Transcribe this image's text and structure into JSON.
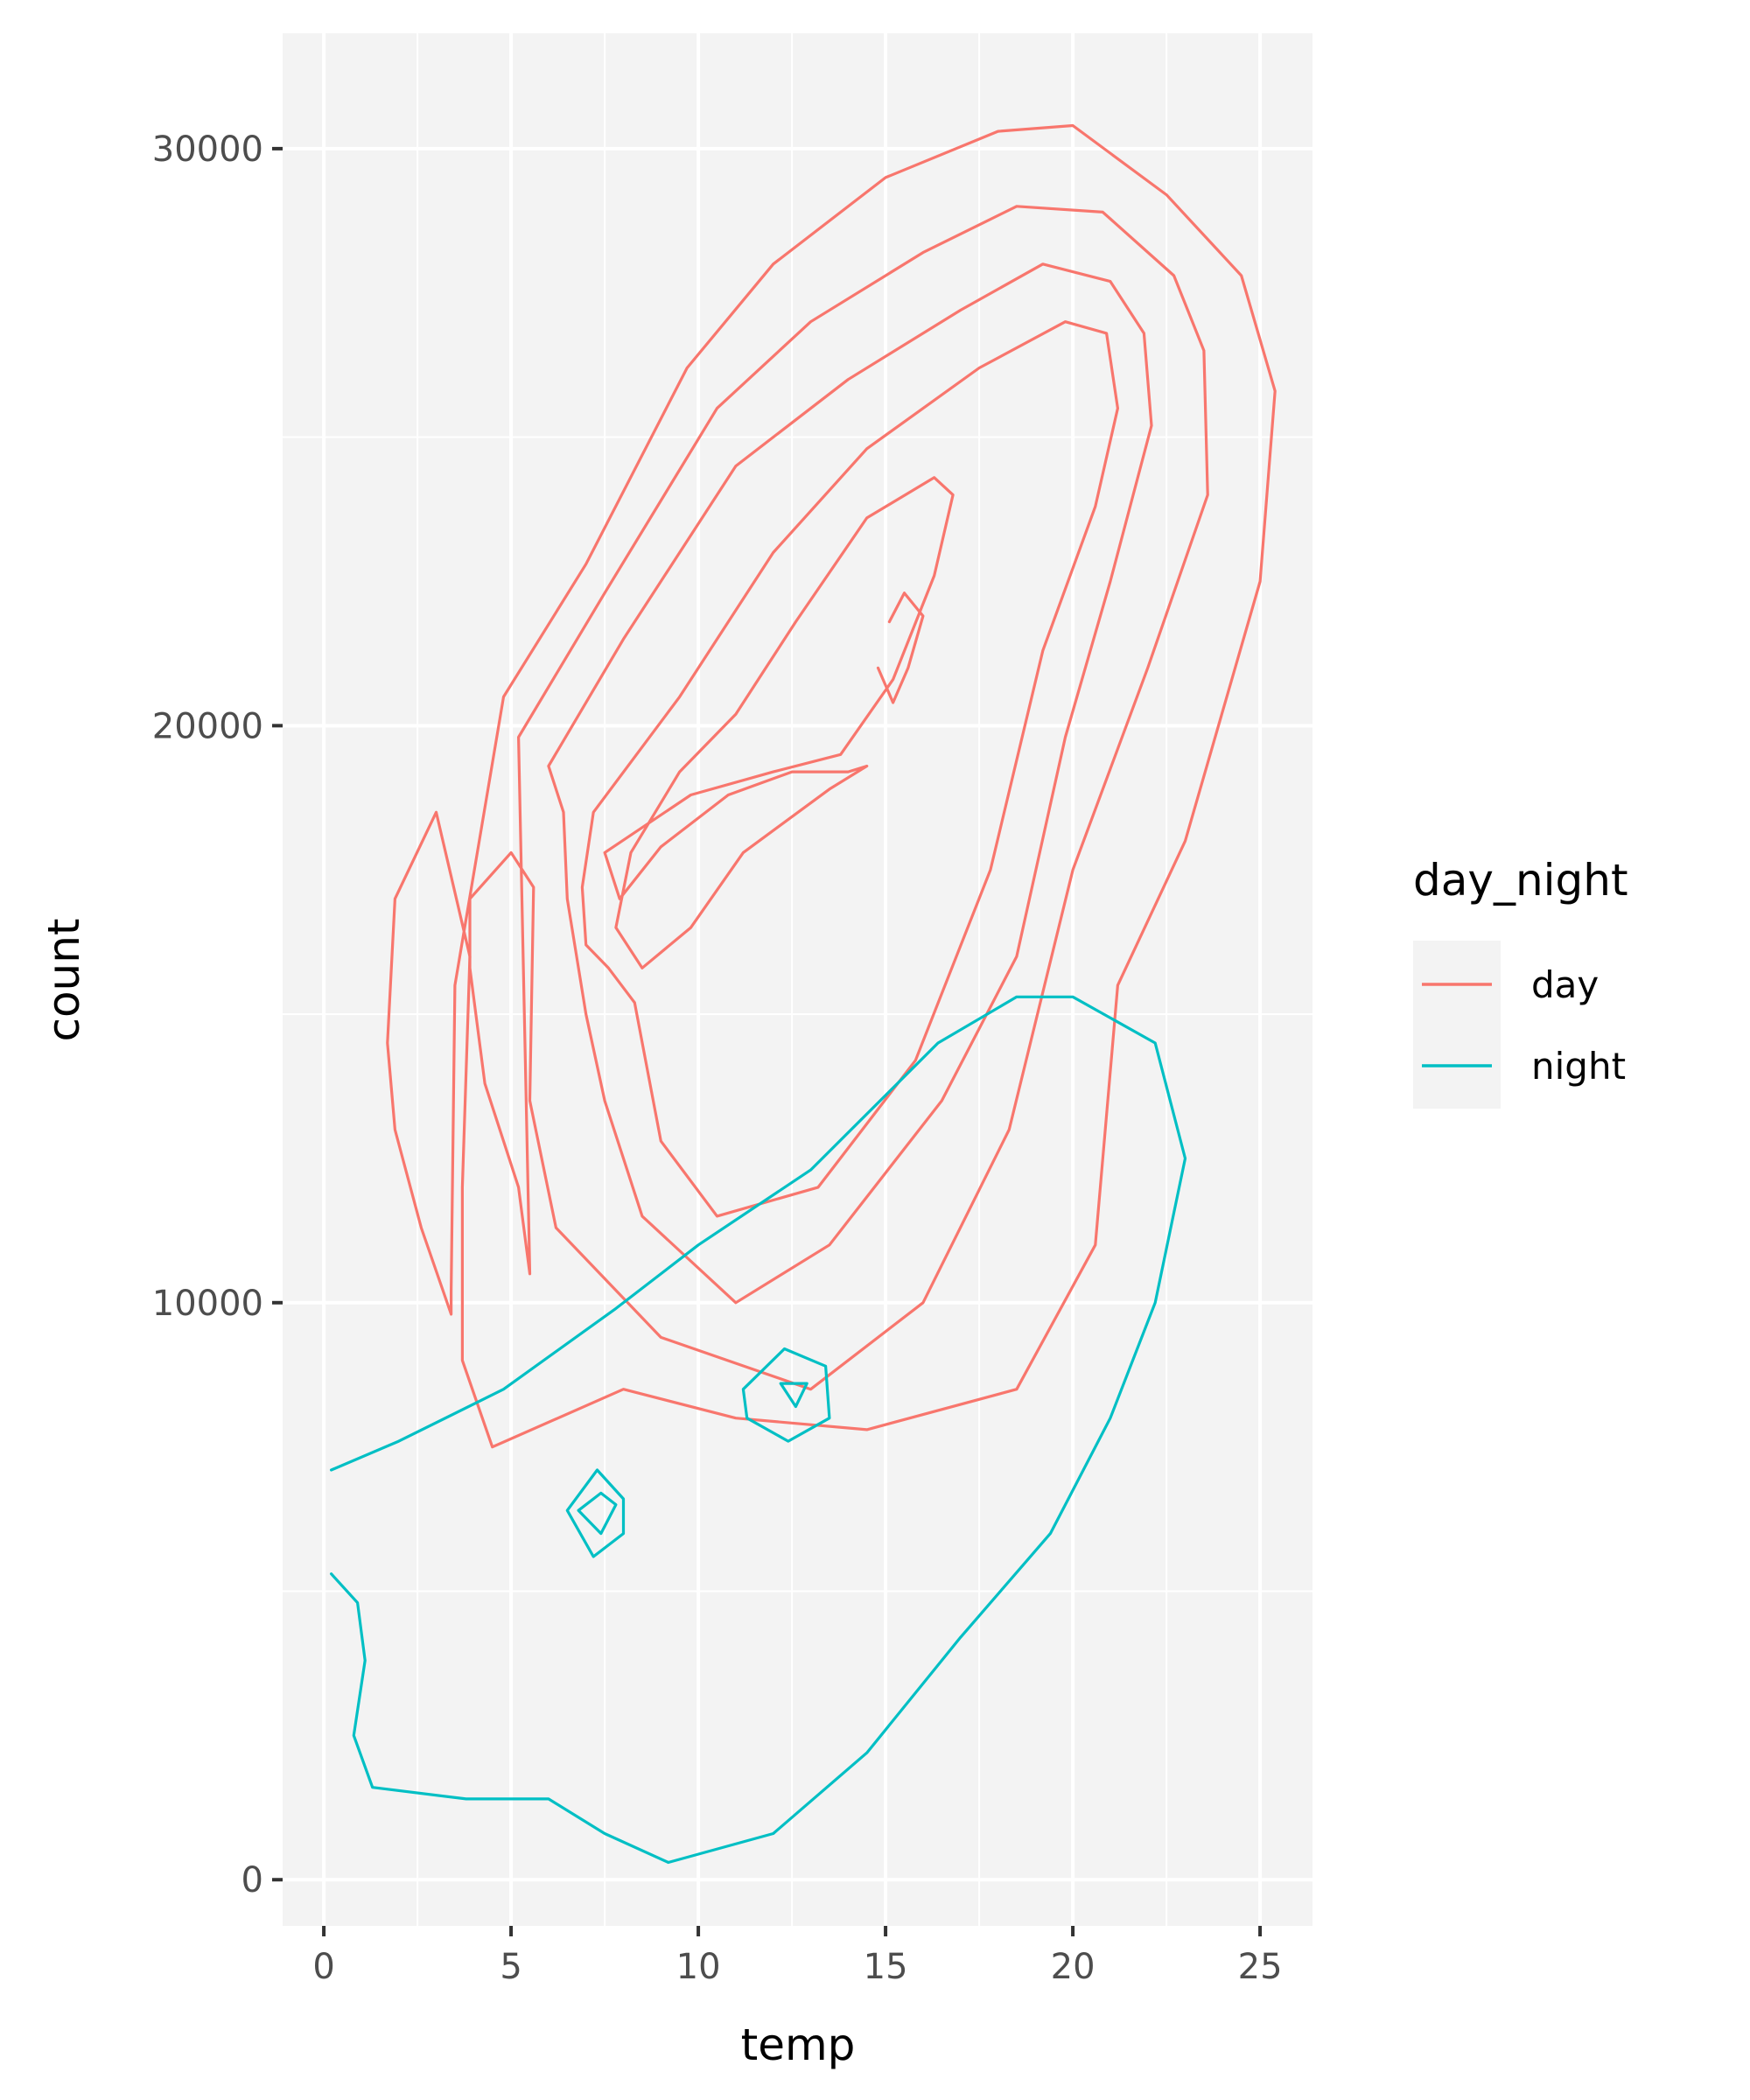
{
  "chart_data": {
    "type": "contour",
    "title": "",
    "xlabel": "temp",
    "ylabel": "count",
    "xlim": [
      -1.1,
      26.4
    ],
    "ylim": [
      -800,
      32000
    ],
    "x_ticks": [
      0,
      5,
      10,
      15,
      20,
      25
    ],
    "x_tick_labels": [
      "0",
      "5",
      "10",
      "15",
      "20",
      "25"
    ],
    "y_ticks": [
      0,
      10000,
      20000,
      30000
    ],
    "y_tick_labels": [
      "0",
      "10000",
      "20000",
      "30000"
    ],
    "grid": true,
    "legend": {
      "title": "day_night",
      "position": "right"
    },
    "series": [
      {
        "name": "day",
        "color": "#F8766D",
        "contours": [
          [
            [
              14.8,
              21.0
            ],
            [
              15.2,
              20.4
            ],
            [
              15.6,
              21.0
            ],
            [
              16.0,
              21.9
            ],
            [
              15.5,
              22.3
            ],
            [
              15.1,
              21.8
            ]
          ],
          [
            [
              4.8,
              20.5
            ],
            [
              7.0,
              22.8
            ],
            [
              9.7,
              26.2
            ],
            [
              12.0,
              28.0
            ],
            [
              15.0,
              29.5
            ],
            [
              18.0,
              30.3
            ],
            [
              20.0,
              30.4
            ],
            [
              22.5,
              29.2
            ],
            [
              24.5,
              27.8
            ],
            [
              25.4,
              25.8
            ],
            [
              25.0,
              22.5
            ],
            [
              23.0,
              18.0
            ],
            [
              21.2,
              15.5
            ],
            [
              20.6,
              11.0
            ],
            [
              18.5,
              8.5
            ],
            [
              14.5,
              7.8
            ],
            [
              11.0,
              8.0
            ],
            [
              8.0,
              8.5
            ],
            [
              4.5,
              7.5
            ],
            [
              3.7,
              9.0
            ],
            [
              3.7,
              12.0
            ],
            [
              3.9,
              16.0
            ],
            [
              3.0,
              18.5
            ],
            [
              1.9,
              17.0
            ],
            [
              1.7,
              14.5
            ],
            [
              1.9,
              13.0
            ],
            [
              2.6,
              11.3
            ],
            [
              3.4,
              9.8
            ],
            [
              3.4,
              10.2
            ],
            [
              3.5,
              15.5
            ],
            [
              4.8,
              20.5
            ]
          ],
          [
            [
              5.2,
              19.8
            ],
            [
              7.5,
              22.3
            ],
            [
              10.5,
              25.5
            ],
            [
              13.0,
              27.0
            ],
            [
              16.0,
              28.2
            ],
            [
              18.5,
              29.0
            ],
            [
              20.8,
              28.9
            ],
            [
              22.7,
              27.8
            ],
            [
              23.5,
              26.5
            ],
            [
              23.6,
              24.0
            ],
            [
              22.0,
              21.0
            ],
            [
              20.0,
              17.5
            ],
            [
              18.3,
              13.0
            ],
            [
              16.0,
              10.0
            ],
            [
              13.0,
              8.5
            ],
            [
              9.0,
              9.4
            ],
            [
              6.2,
              11.3
            ],
            [
              5.5,
              13.5
            ],
            [
              5.6,
              17.2
            ],
            [
              5.0,
              17.8
            ],
            [
              3.9,
              17.0
            ],
            [
              3.9,
              15.8
            ],
            [
              4.3,
              13.8
            ],
            [
              5.2,
              12.0
            ],
            [
              5.5,
              10.5
            ],
            [
              5.2,
              19.8
            ]
          ],
          [
            [
              6.0,
              19.3
            ],
            [
              8.0,
              21.5
            ],
            [
              11.0,
              24.5
            ],
            [
              14.0,
              26.0
            ],
            [
              17.0,
              27.2
            ],
            [
              19.2,
              28.0
            ],
            [
              21.0,
              27.7
            ],
            [
              21.9,
              26.8
            ],
            [
              22.1,
              25.2
            ],
            [
              21.0,
              22.5
            ],
            [
              19.8,
              19.8
            ],
            [
              18.5,
              16.0
            ],
            [
              16.5,
              13.5
            ],
            [
              13.5,
              11.0
            ],
            [
              11.0,
              10.0
            ],
            [
              8.5,
              11.5
            ],
            [
              7.5,
              13.5
            ],
            [
              7.0,
              15.0
            ],
            [
              6.5,
              17.0
            ],
            [
              6.4,
              18.5
            ],
            [
              6.0,
              19.3
            ]
          ],
          [
            [
              7.2,
              18.5
            ],
            [
              9.5,
              20.5
            ],
            [
              12.0,
              23.0
            ],
            [
              14.5,
              24.8
            ],
            [
              17.5,
              26.2
            ],
            [
              19.8,
              27.0
            ],
            [
              20.9,
              26.8
            ],
            [
              21.2,
              25.5
            ],
            [
              20.6,
              23.8
            ],
            [
              19.2,
              21.3
            ],
            [
              17.8,
              17.5
            ],
            [
              15.8,
              14.2
            ],
            [
              13.2,
              12.0
            ],
            [
              10.5,
              11.5
            ],
            [
              9.0,
              12.8
            ],
            [
              8.3,
              15.2
            ],
            [
              7.6,
              15.8
            ],
            [
              7.0,
              16.2
            ],
            [
              6.9,
              17.2
            ],
            [
              7.2,
              18.5
            ]
          ],
          [
            [
              7.5,
              17.8
            ],
            [
              9.8,
              18.8
            ],
            [
              12.0,
              19.2
            ],
            [
              13.8,
              19.5
            ],
            [
              15.2,
              20.8
            ],
            [
              16.3,
              22.6
            ],
            [
              16.8,
              24.0
            ],
            [
              16.3,
              24.3
            ],
            [
              14.5,
              23.6
            ],
            [
              12.6,
              21.8
            ],
            [
              11.0,
              20.2
            ],
            [
              9.5,
              19.2
            ],
            [
              8.2,
              17.8
            ],
            [
              7.8,
              16.5
            ],
            [
              8.5,
              15.8
            ],
            [
              9.8,
              16.5
            ],
            [
              11.2,
              17.8
            ],
            [
              13.5,
              18.9
            ],
            [
              14.5,
              19.3
            ],
            [
              14.0,
              19.2
            ],
            [
              12.5,
              19.2
            ],
            [
              10.8,
              18.8
            ],
            [
              9.0,
              17.9
            ],
            [
              7.9,
              17.0
            ],
            [
              7.5,
              17.8
            ]
          ]
        ]
      },
      {
        "name": "night",
        "color": "#00BFC4",
        "contours": [
          [
            [
              12.2,
              8.6
            ],
            [
              12.9,
              8.6
            ],
            [
              12.6,
              8.2
            ],
            [
              12.2,
              8.6
            ]
          ],
          [
            [
              6.8,
              6.4
            ],
            [
              7.4,
              6.0
            ],
            [
              7.8,
              6.5
            ],
            [
              7.4,
              6.7
            ],
            [
              6.8,
              6.4
            ]
          ],
          [
            [
              6.5,
              6.4
            ],
            [
              7.2,
              5.6
            ],
            [
              8.0,
              6.0
            ],
            [
              8.0,
              6.6
            ],
            [
              7.3,
              7.1
            ],
            [
              6.5,
              6.4
            ]
          ],
          [
            [
              11.2,
              8.5
            ],
            [
              12.3,
              9.2
            ],
            [
              13.4,
              8.9
            ],
            [
              13.5,
              8.0
            ],
            [
              12.4,
              7.6
            ],
            [
              11.3,
              8.0
            ],
            [
              11.2,
              8.5
            ]
          ],
          [
            [
              0.2,
              7.1
            ],
            [
              2.0,
              7.6
            ],
            [
              4.8,
              8.5
            ],
            [
              7.8,
              9.9
            ],
            [
              10.0,
              11.0
            ],
            [
              13.0,
              12.3
            ],
            [
              16.4,
              14.5
            ],
            [
              18.5,
              15.3
            ],
            [
              20.0,
              15.3
            ],
            [
              22.2,
              14.5
            ],
            [
              23.0,
              12.5
            ],
            [
              22.2,
              10.0
            ],
            [
              21.0,
              8.0
            ],
            [
              19.4,
              6.0
            ],
            [
              17.0,
              4.2
            ],
            [
              14.5,
              2.2
            ],
            [
              12.0,
              0.8
            ],
            [
              9.2,
              0.3
            ],
            [
              7.5,
              0.8
            ],
            [
              6.0,
              1.4
            ],
            [
              3.8,
              1.4
            ],
            [
              1.3,
              1.6
            ],
            [
              0.8,
              2.5
            ],
            [
              1.1,
              3.8
            ],
            [
              0.9,
              4.8
            ],
            [
              0.2,
              5.3
            ]
          ]
        ],
        "centers": [
          [
            7.3,
            6.3
          ],
          [
            12.4,
            8.5
          ]
        ]
      }
    ]
  }
}
